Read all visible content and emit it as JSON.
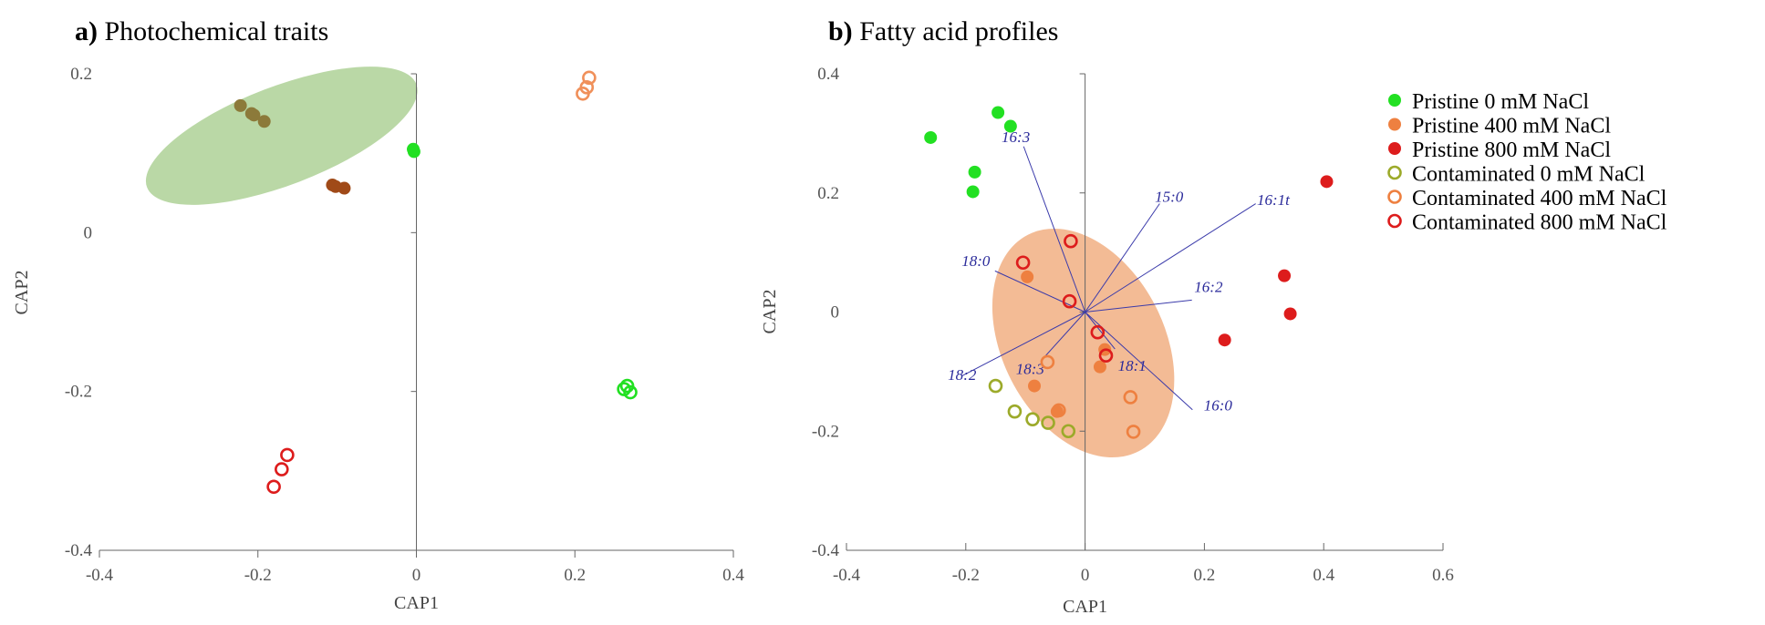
{
  "colors": {
    "pristine_0": "#22e022",
    "pristine_400": "#ee8040",
    "pristine_800": "#dd1c1c",
    "photo_olive": "#8c7a3a",
    "photo_brown": "#a04a18",
    "contam_400_photo": "#f0905a",
    "contam_0_fatty": "#9caa2a",
    "ellipse_green": "#b2d49c",
    "ellipse_orange": "#f2b48a",
    "vector": "#3a3aaa",
    "axis": "#666666"
  },
  "chart_data": [
    {
      "type": "scatter",
      "panel_letter": "a)",
      "title": "Photochemical traits",
      "xlabel": "CAP1",
      "ylabel": "CAP2",
      "xlim": [
        -0.4,
        0.4
      ],
      "ylim": [
        -0.4,
        0.2
      ],
      "xticks": [
        -0.4,
        -0.2,
        0,
        0.2,
        0.4
      ],
      "yticks": [
        0.2,
        0,
        -0.2,
        -0.4
      ],
      "xtick_labels": [
        "-0.4",
        "-0.2",
        "0",
        "0.2",
        "0.4"
      ],
      "ytick_labels": [
        "0.2",
        "0",
        "-0.2",
        "-0.4"
      ],
      "ellipses": [
        {
          "cx": -0.17,
          "cy": 0.122,
          "rx": 0.182,
          "ry": 0.062,
          "angle_deg": -21,
          "color_key": "ellipse_green"
        }
      ],
      "groups": [
        {
          "color_key": "photo_olive",
          "filled": true,
          "points": [
            [
              -0.222,
              0.16
            ],
            [
              -0.208,
              0.15
            ],
            [
              -0.205,
              0.148
            ],
            [
              -0.192,
              0.14
            ]
          ]
        },
        {
          "color_key": "photo_brown",
          "filled": true,
          "points": [
            [
              -0.106,
              0.06
            ],
            [
              -0.102,
              0.058
            ],
            [
              -0.091,
              0.056
            ]
          ]
        },
        {
          "color_key": "pristine_0",
          "filled": true,
          "points": [
            [
              -0.004,
              0.105
            ],
            [
              -0.003,
              0.102
            ]
          ]
        },
        {
          "color_key": "contam_400_photo",
          "filled": false,
          "points": [
            [
              0.218,
              0.195
            ],
            [
              0.215,
              0.183
            ],
            [
              0.21,
              0.175
            ]
          ]
        },
        {
          "color_key": "pristine_0",
          "filled": false,
          "points": [
            [
              0.262,
              -0.197
            ],
            [
              0.266,
              -0.193
            ],
            [
              0.27,
              -0.201
            ]
          ]
        },
        {
          "color_key": "pristine_800",
          "filled": false,
          "points": [
            [
              -0.163,
              -0.28
            ],
            [
              -0.17,
              -0.298
            ],
            [
              -0.18,
              -0.32
            ]
          ]
        }
      ]
    },
    {
      "type": "scatter",
      "panel_letter": "b)",
      "title": "Fatty acid profiles",
      "xlabel": "CAP1",
      "ylabel": "CAP2",
      "xlim": [
        -0.4,
        0.6
      ],
      "ylim": [
        -0.4,
        0.4
      ],
      "xticks": [
        -0.4,
        -0.2,
        0,
        0.2,
        0.4,
        0.6
      ],
      "yticks": [
        0.4,
        0.2,
        0,
        -0.2,
        -0.4
      ],
      "xtick_labels": [
        "-0.4",
        "-0.2",
        "0",
        "0.2",
        "0.4",
        "0.6"
      ],
      "ytick_labels": [
        "0.4",
        "0.2",
        "0",
        "-0.2",
        "-0.4"
      ],
      "ellipses": [
        {
          "cx": -0.003,
          "cy": -0.052,
          "rx": 0.204,
          "ry": 0.136,
          "angle_deg": 63,
          "color_key": "ellipse_orange"
        }
      ],
      "vectors": [
        {
          "label": "16:3",
          "end": [
            -0.103,
            0.278
          ],
          "label_pos": [
            -0.14,
            0.285
          ]
        },
        {
          "label": "15:0",
          "end": [
            0.125,
            0.182
          ],
          "label_pos": [
            0.117,
            0.185
          ]
        },
        {
          "label": "16:1t",
          "end": [
            0.286,
            0.182
          ],
          "label_pos": [
            0.288,
            0.18
          ]
        },
        {
          "label": "18:0",
          "end": [
            -0.151,
            0.069
          ],
          "label_pos": [
            -0.207,
            0.077
          ]
        },
        {
          "label": "16:2",
          "end": [
            0.179,
            0.02
          ],
          "label_pos": [
            0.183,
            0.034
          ]
        },
        {
          "label": "18:1",
          "end": [
            0.05,
            -0.062
          ],
          "label_pos": [
            0.055,
            -0.099
          ]
        },
        {
          "label": "18:3",
          "end": [
            -0.074,
            -0.082
          ],
          "label_pos": [
            -0.116,
            -0.104
          ]
        },
        {
          "label": "18:2",
          "end": [
            -0.206,
            -0.107
          ],
          "label_pos": [
            -0.23,
            -0.114
          ]
        },
        {
          "label": "16:0",
          "end": [
            0.18,
            -0.164
          ],
          "label_pos": [
            0.199,
            -0.165
          ]
        }
      ],
      "series": [
        {
          "name": "Pristine 0 mM NaCl",
          "color_key": "pristine_0",
          "filled": true,
          "points": [
            [
              -0.259,
              0.293
            ],
            [
              -0.146,
              0.335
            ],
            [
              -0.125,
              0.312
            ],
            [
              -0.185,
              0.235
            ],
            [
              -0.188,
              0.202
            ]
          ]
        },
        {
          "name": "Pristine 400 mM NaCl",
          "color_key": "pristine_400",
          "filled": true,
          "points": [
            [
              -0.097,
              0.059
            ],
            [
              -0.085,
              -0.124
            ],
            [
              -0.047,
              -0.167
            ],
            [
              0.025,
              -0.092
            ],
            [
              0.033,
              -0.063
            ]
          ]
        },
        {
          "name": "Pristine 800 mM NaCl",
          "color_key": "pristine_800",
          "filled": true,
          "points": [
            [
              0.405,
              0.219
            ],
            [
              0.334,
              0.061
            ],
            [
              0.344,
              -0.003
            ],
            [
              0.234,
              -0.047
            ]
          ]
        },
        {
          "name": "Contaminated 0 mM NaCl",
          "color_key": "contam_0_fatty",
          "filled": false,
          "points": [
            [
              -0.15,
              -0.124
            ],
            [
              -0.118,
              -0.167
            ],
            [
              -0.088,
              -0.18
            ],
            [
              -0.062,
              -0.186
            ],
            [
              -0.028,
              -0.2
            ]
          ]
        },
        {
          "name": "Contaminated 400 mM NaCl",
          "color_key": "pristine_400",
          "filled": false,
          "points": [
            [
              -0.063,
              -0.084
            ],
            [
              -0.044,
              -0.165
            ],
            [
              0.076,
              -0.143
            ],
            [
              0.081,
              -0.201
            ]
          ]
        },
        {
          "name": "Contaminated 800 mM NaCl",
          "color_key": "pristine_800",
          "filled": false,
          "points": [
            [
              -0.024,
              0.119
            ],
            [
              -0.104,
              0.083
            ],
            [
              -0.026,
              0.018
            ],
            [
              0.021,
              -0.034
            ],
            [
              0.035,
              -0.073
            ]
          ]
        }
      ],
      "legend": {
        "placement": "right"
      }
    }
  ]
}
